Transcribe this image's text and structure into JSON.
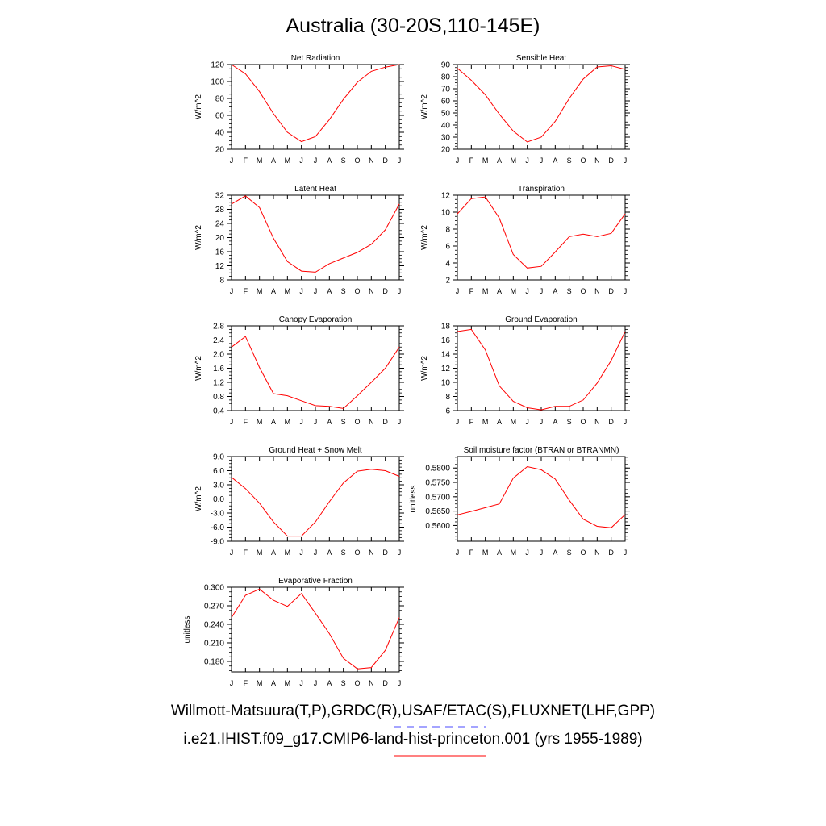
{
  "title": "Australia (30-20S,110-145E)",
  "month_labels": [
    "J",
    "F",
    "M",
    "A",
    "M",
    "J",
    "J",
    "A",
    "S",
    "O",
    "N",
    "D",
    "J"
  ],
  "series_color": "#ff0000",
  "obs_color": "#4a4aff",
  "chart_data": [
    {
      "type": "line",
      "title": "Net Radiation",
      "ylabel": "W/m^2",
      "ylim": [
        20,
        120
      ],
      "yticks": [
        20,
        40,
        60,
        80,
        100,
        120
      ],
      "ytick_labels": [
        "20",
        "40",
        "60",
        "80",
        "100",
        "120"
      ],
      "x": [
        "J",
        "F",
        "M",
        "A",
        "M",
        "J",
        "J",
        "A",
        "S",
        "O",
        "N",
        "D",
        "J"
      ],
      "values": [
        120,
        109,
        88,
        62,
        40,
        29,
        35,
        55,
        79,
        99,
        112,
        117,
        120
      ]
    },
    {
      "type": "line",
      "title": "Sensible Heat",
      "ylabel": "W/m^2",
      "ylim": [
        20,
        90
      ],
      "yticks": [
        20,
        30,
        40,
        50,
        60,
        70,
        80,
        90
      ],
      "ytick_labels": [
        "20",
        "30",
        "40",
        "50",
        "60",
        "70",
        "80",
        "90"
      ],
      "x": [
        "J",
        "F",
        "M",
        "A",
        "M",
        "J",
        "J",
        "A",
        "S",
        "O",
        "N",
        "D",
        "J"
      ],
      "values": [
        87,
        77,
        65,
        49,
        35,
        26,
        30,
        43,
        62,
        78,
        88,
        89,
        86
      ]
    },
    {
      "type": "line",
      "title": "Latent Heat",
      "ylabel": "W/m^2",
      "ylim": [
        8,
        32
      ],
      "yticks": [
        8,
        12,
        16,
        20,
        24,
        28,
        32
      ],
      "ytick_labels": [
        "8",
        "12",
        "16",
        "20",
        "24",
        "28",
        "32"
      ],
      "x": [
        "J",
        "F",
        "M",
        "A",
        "M",
        "J",
        "J",
        "A",
        "S",
        "O",
        "N",
        "D",
        "J"
      ],
      "values": [
        29.5,
        31.8,
        28.5,
        19.8,
        13.2,
        10.5,
        10.2,
        12.6,
        14.2,
        15.8,
        18.1,
        22.2,
        29.5
      ]
    },
    {
      "type": "line",
      "title": "Transpiration",
      "ylabel": "W/m^2",
      "ylim": [
        2,
        12
      ],
      "yticks": [
        2,
        4,
        6,
        8,
        10,
        12
      ],
      "ytick_labels": [
        "2",
        "4",
        "6",
        "8",
        "10",
        "12"
      ],
      "x": [
        "J",
        "F",
        "M",
        "A",
        "M",
        "J",
        "J",
        "A",
        "S",
        "O",
        "N",
        "D",
        "J"
      ],
      "values": [
        9.8,
        11.6,
        11.8,
        9.3,
        5.0,
        3.4,
        3.6,
        5.3,
        7.1,
        7.4,
        7.1,
        7.5,
        9.8
      ]
    },
    {
      "type": "line",
      "title": "Canopy Evaporation",
      "ylabel": "W/m^2",
      "ylim": [
        0.4,
        2.8
      ],
      "yticks": [
        0.4,
        0.8,
        1.2,
        1.6,
        2.0,
        2.4,
        2.8
      ],
      "ytick_labels": [
        "0.4",
        "0.8",
        "1.2",
        "1.6",
        "2.0",
        "2.4",
        "2.8"
      ],
      "x": [
        "J",
        "F",
        "M",
        "A",
        "M",
        "J",
        "J",
        "A",
        "S",
        "O",
        "N",
        "D",
        "J"
      ],
      "values": [
        2.2,
        2.5,
        1.62,
        0.88,
        0.82,
        0.68,
        0.54,
        0.52,
        0.46,
        0.82,
        1.2,
        1.6,
        2.2
      ]
    },
    {
      "type": "line",
      "title": "Ground Evaporation",
      "ylabel": "W/m^2",
      "ylim": [
        6,
        18
      ],
      "yticks": [
        6,
        8,
        10,
        12,
        14,
        16,
        18
      ],
      "ytick_labels": [
        "6",
        "8",
        "10",
        "12",
        "14",
        "16",
        "18"
      ],
      "x": [
        "J",
        "F",
        "M",
        "A",
        "M",
        "J",
        "J",
        "A",
        "S",
        "O",
        "N",
        "D",
        "J"
      ],
      "values": [
        17.2,
        17.5,
        14.6,
        9.5,
        7.3,
        6.4,
        6.1,
        6.6,
        6.6,
        7.5,
        9.9,
        13.1,
        17.2
      ]
    },
    {
      "type": "line",
      "title": "Ground Heat + Snow Melt",
      "ylabel": "W/m^2",
      "ylim": [
        -9.0,
        9.0
      ],
      "yticks": [
        -9,
        -6,
        -3,
        0,
        3,
        6,
        9
      ],
      "ytick_labels": [
        "-9.0",
        "-6.0",
        "-3.0",
        "0.0",
        "3.0",
        "6.0",
        "9.0"
      ],
      "x": [
        "J",
        "F",
        "M",
        "A",
        "M",
        "J",
        "J",
        "A",
        "S",
        "O",
        "N",
        "D",
        "J"
      ],
      "values": [
        4.6,
        2.2,
        -0.9,
        -4.9,
        -7.9,
        -7.9,
        -4.9,
        -0.6,
        3.4,
        5.9,
        6.3,
        6.0,
        4.8
      ]
    },
    {
      "type": "line",
      "title": "Soil moisture factor (BTRAN or BTRANMN)",
      "ylabel": "unitless",
      "ylim": [
        0.5545,
        0.584
      ],
      "yticks": [
        0.56,
        0.565,
        0.57,
        0.575,
        0.58
      ],
      "ytick_labels": [
        "0.5600",
        "0.5650",
        "0.5700",
        "0.5750",
        "0.5800"
      ],
      "x": [
        "J",
        "F",
        "M",
        "A",
        "M",
        "J",
        "J",
        "A",
        "S",
        "O",
        "N",
        "D",
        "J"
      ],
      "values": [
        0.5637,
        0.5649,
        0.5662,
        0.5675,
        0.5765,
        0.5805,
        0.5794,
        0.5762,
        0.5688,
        0.5622,
        0.5597,
        0.5592,
        0.5638
      ]
    },
    {
      "type": "line",
      "title": "Evaporative Fraction",
      "ylabel": "unitless",
      "ylim": [
        0.163,
        0.3
      ],
      "yticks": [
        0.18,
        0.21,
        0.24,
        0.27,
        0.3
      ],
      "ytick_labels": [
        "0.180",
        "0.210",
        "0.240",
        "0.270",
        "0.300"
      ],
      "x": [
        "J",
        "F",
        "M",
        "A",
        "M",
        "J",
        "J",
        "A",
        "S",
        "O",
        "N",
        "D",
        "J"
      ],
      "values": [
        0.251,
        0.287,
        0.297,
        0.279,
        0.269,
        0.29,
        0.258,
        0.225,
        0.185,
        0.168,
        0.17,
        0.198,
        0.251
      ]
    }
  ],
  "legend": {
    "line1": "Willmott-Matsuura(T,P),GRDC(R),USAF/ETAC(S),FLUXNET(LHF,GPP)",
    "line2": "i.e21.IHIST.f09_g17.CMIP6-land-hist-princeton.001 (yrs 1955-1989)"
  }
}
